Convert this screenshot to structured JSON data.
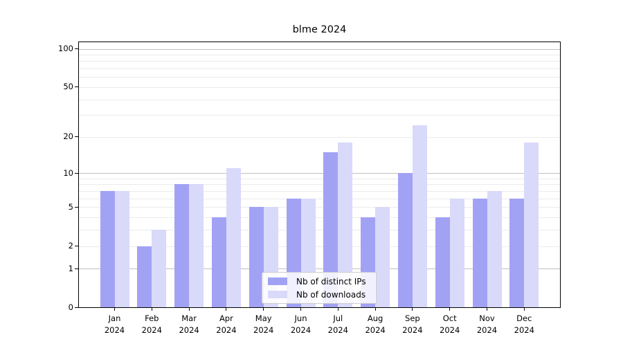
{
  "chart_data": {
    "type": "bar",
    "title": "blme 2024",
    "categories": [
      "Jan 2024",
      "Feb 2024",
      "Mar 2024",
      "Apr 2024",
      "May 2024",
      "Jun 2024",
      "Jul 2024",
      "Aug 2024",
      "Sep 2024",
      "Oct 2024",
      "Nov 2024",
      "Dec 2024"
    ],
    "month_labels": [
      "Jan",
      "Feb",
      "Mar",
      "Apr",
      "May",
      "Jun",
      "Jul",
      "Aug",
      "Sep",
      "Oct",
      "Nov",
      "Dec"
    ],
    "year_label": "2024",
    "series": [
      {
        "name": "Nb of distinct IPs",
        "color": "#a2a2f4",
        "values": [
          7,
          2,
          8,
          4,
          5,
          6,
          15,
          4,
          10,
          4,
          6,
          6
        ]
      },
      {
        "name": "Nb of downloads",
        "color": "#d9d9fa",
        "values": [
          7,
          3,
          8,
          11,
          5,
          6,
          18,
          5,
          25,
          6,
          7,
          18
        ]
      }
    ],
    "y_scale": "log1p",
    "y_ticks": [
      0,
      1,
      2,
      5,
      10,
      20,
      50,
      100
    ],
    "y_major_gridlines": [
      1,
      10,
      100
    ],
    "y_minor_gridlines": [
      2,
      3,
      4,
      5,
      6,
      7,
      8,
      9,
      20,
      30,
      40,
      50,
      60,
      70,
      80,
      90
    ],
    "ylim": [
      0,
      112
    ],
    "xlabel": "",
    "ylabel": "",
    "grid": true,
    "legend_position": "lower center",
    "colors": {
      "bar_dark": "#a2a2f4",
      "bar_light": "#d9d9fa",
      "grid_major": "#c0c0c0",
      "grid_minor": "#ebebeb",
      "axis": "#000000",
      "background": "#ffffff"
    }
  }
}
